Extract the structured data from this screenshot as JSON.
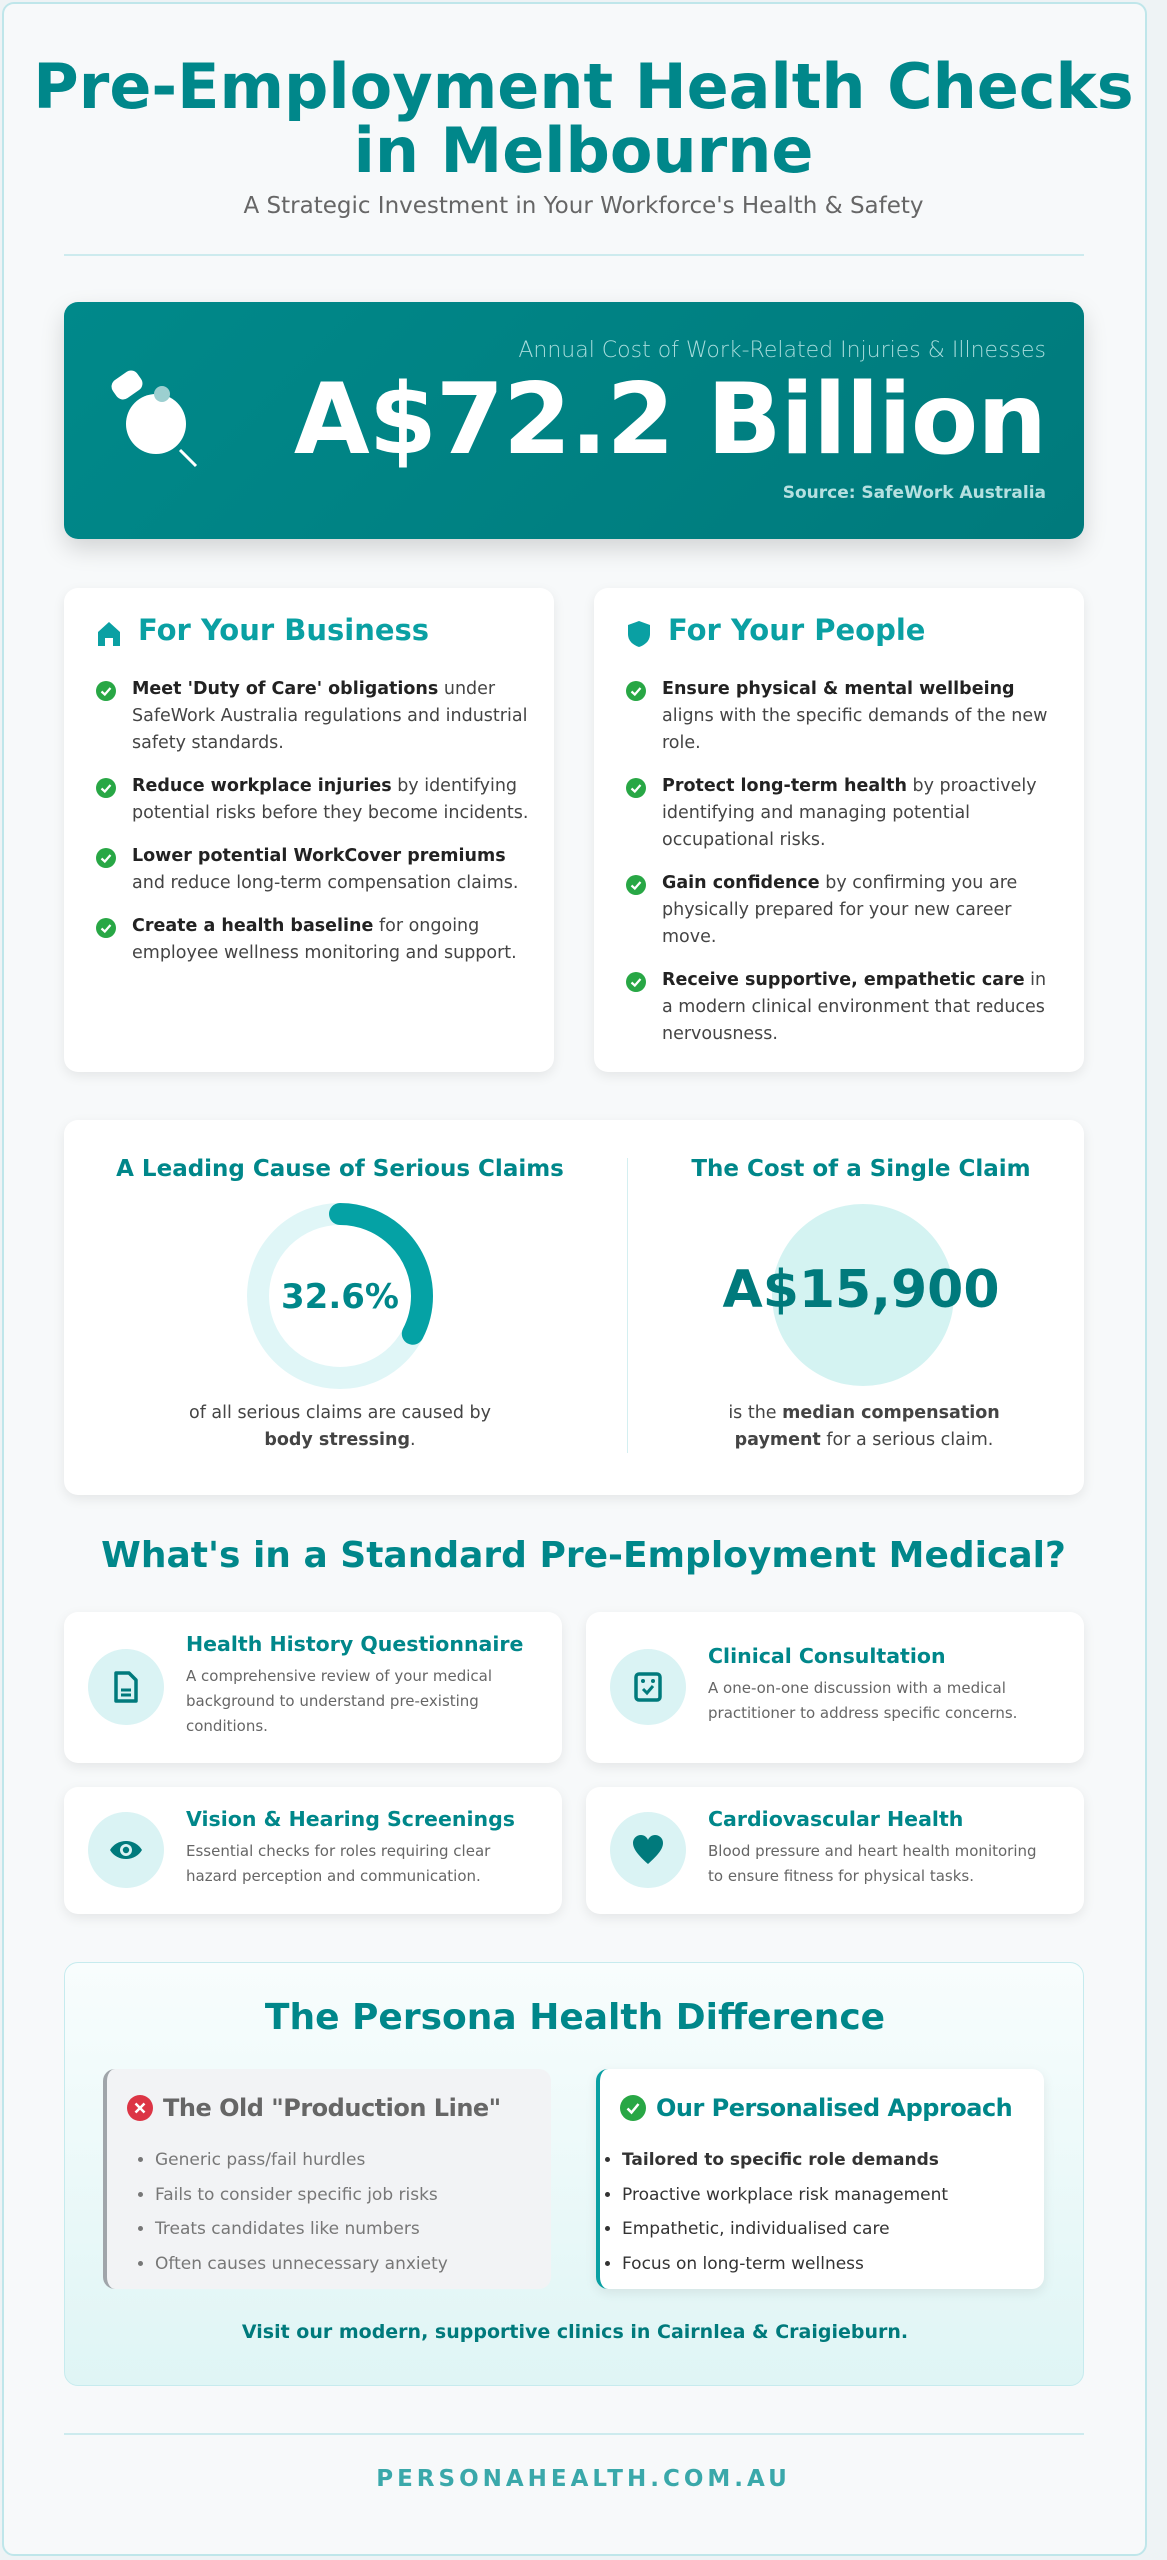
{
  "header": {
    "title_line1": "Pre-Employment Health Checks",
    "title_line2": "in Melbourne",
    "subtitle": "A Strategic Investment in Your Workforce's Health & Safety"
  },
  "hero": {
    "label": "Annual Cost of Work-Related Injuries & Illnesses",
    "value": "A$72.2 Billion",
    "source": "Source: SafeWork Australia",
    "icon": "stopwatch-icon"
  },
  "business": {
    "title": "For Your Business",
    "icon": "house-icon",
    "items": [
      {
        "bold": "Meet 'Duty of Care' obligations",
        "rest": " under SafeWork Australia regulations and industrial safety standards."
      },
      {
        "bold": "Reduce workplace injuries",
        "rest": " by identifying potential risks before they become incidents."
      },
      {
        "bold": "Lower potential WorkCover premiums",
        "rest": " and reduce long-term compensation claims."
      },
      {
        "bold": "Create a health baseline",
        "rest": " for ongoing employee wellness monitoring and support."
      }
    ]
  },
  "people": {
    "title": "For Your People",
    "icon": "shield-icon",
    "items": [
      {
        "bold": "Ensure physical & mental wellbeing",
        "rest": " aligns with the specific demands of the new role."
      },
      {
        "bold": "Protect long-term health",
        "rest": " by proactively identifying and managing potential occupational risks."
      },
      {
        "bold": "Gain confidence",
        "rest": " by confirming you are physically prepared for your new career move."
      },
      {
        "bold": "Receive supportive, empathetic care",
        "rest": " in a modern clinical environment that reduces nervousness."
      }
    ]
  },
  "stats": {
    "left": {
      "title": "A Leading Cause of Serious Claims",
      "value": "32.6%",
      "percent": 32.6,
      "caption_pre": "of all serious claims are caused by ",
      "caption_bold": "body stressing",
      "caption_post": "."
    },
    "right": {
      "title": "The Cost of a Single Claim",
      "value": "A$15,900",
      "caption_pre": "is the ",
      "caption_bold": "median compensation payment",
      "caption_post": " for a serious claim."
    }
  },
  "tests": {
    "title": "What's in a Standard Pre-Employment Medical?",
    "items": [
      {
        "title": "Health History Questionnaire",
        "desc": "A comprehensive review of your medical background to understand pre-existing conditions.",
        "icon": "document-icon"
      },
      {
        "title": "Clinical Consultation",
        "desc": "A one-on-one discussion with a medical practitioner to address specific concerns.",
        "icon": "clipboard-check-icon"
      },
      {
        "title": "Vision & Hearing Screenings",
        "desc": "Essential checks for roles requiring clear hazard perception and communication.",
        "icon": "eye-icon"
      },
      {
        "title": "Cardiovascular Health",
        "desc": "Blood pressure and heart health monitoring to ensure fitness for physical tasks.",
        "icon": "heart-icon"
      }
    ]
  },
  "difference": {
    "title": "The Persona Health Difference",
    "old": {
      "title": "The Old \"Production Line\"",
      "items": [
        "Generic pass/fail hurdles",
        "Fails to consider specific job risks",
        "Treats candidates like numbers",
        "Often causes unnecessary anxiety"
      ]
    },
    "new": {
      "title": "Our Personalised Approach",
      "items": [
        "Tailored to specific role demands",
        "Proactive workplace risk management",
        "Empathetic, individualised care",
        "Focus on long-term wellness"
      ]
    },
    "cta": "Visit our modern, supportive clinics in Cairnlea & Craigieburn."
  },
  "footer": {
    "website": "PERSONAHEALTH.COM.AU"
  },
  "colors": {
    "primary": "#00878a",
    "accent": "#0aa0a3",
    "check": "#28a745",
    "cross": "#dc3545"
  }
}
